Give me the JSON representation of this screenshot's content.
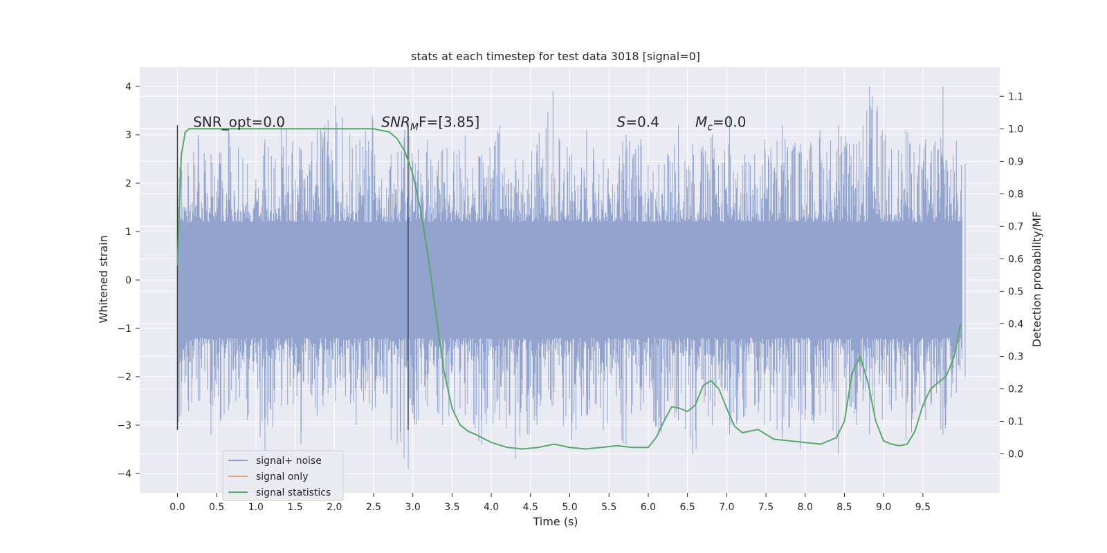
{
  "chart_data": {
    "type": "line",
    "title": "stats at each timestep for test data 3018 [signal=0]",
    "xlabel": "Time (s)",
    "ylabel": "Whitened strain",
    "y2label": "Detection probability/MF",
    "xlim": [
      -0.48,
      10.48
    ],
    "ylim": [
      -4.4,
      4.4
    ],
    "y2lim": [
      -0.12,
      1.19
    ],
    "x_ticks": [
      0.0,
      0.5,
      1.0,
      1.5,
      2.0,
      2.5,
      3.0,
      3.5,
      4.0,
      4.5,
      5.0,
      5.5,
      6.0,
      6.5,
      7.0,
      7.5,
      8.0,
      8.5,
      9.0,
      9.5
    ],
    "x_tick_labels": [
      "0.0",
      "0.5",
      "1.0",
      "1.5",
      "2.0",
      "2.5",
      "3.0",
      "3.5",
      "4.0",
      "4.5",
      "5.0",
      "5.5",
      "6.0",
      "6.5",
      "7.0",
      "7.5",
      "8.0",
      "8.5",
      "9.0",
      "9.5"
    ],
    "y_ticks": [
      -4,
      -3,
      -2,
      -1,
      0,
      1,
      2,
      3,
      4
    ],
    "y_tick_labels": [
      "−4",
      "−3",
      "−2",
      "−1",
      "0",
      "1",
      "2",
      "3",
      "4"
    ],
    "y2_ticks": [
      0.0,
      0.1,
      0.2,
      0.3,
      0.4,
      0.5,
      0.6,
      0.7,
      0.8,
      0.9,
      1.0,
      1.1
    ],
    "y2_tick_labels": [
      "0.0",
      "0.1",
      "0.2",
      "0.3",
      "0.4",
      "0.5",
      "0.6",
      "0.7",
      "0.8",
      "0.9",
      "1.0",
      "1.1"
    ],
    "grid": true,
    "legend_position": "lower-left",
    "annotations": [
      {
        "text_main": "SNR_opt=0.0",
        "x": 0.2
      },
      {
        "text_italic": "SNR",
        "text_sub": "M",
        "text_rest": "F=[3.85]",
        "x": 2.6
      },
      {
        "text_italic": "S",
        "text_rest": "=0.4",
        "x": 5.6
      },
      {
        "text_italic": "M",
        "text_sub": "c",
        "text_rest": "=0.0",
        "x": 6.6
      }
    ],
    "vlines": [
      0.0,
      2.94
    ],
    "series": [
      {
        "name": "signal+ noise",
        "color": "#8da0cb",
        "x_range": [
          0.0,
          10.0
        ],
        "envelope_upper": [
          2.5,
          3.0,
          2.6,
          3.1,
          2.4,
          2.9,
          3.2,
          2.7,
          3.1,
          3.6,
          2.8,
          3.4,
          2.6,
          3.3,
          2.9,
          2.7,
          3.0,
          2.6,
          3.2,
          2.5,
          2.8,
          3.9,
          2.6,
          3.1,
          2.5,
          3.0,
          2.9,
          2.4,
          3.2,
          2.8,
          3.0,
          3.4,
          2.6,
          2.9,
          3.2,
          2.8,
          3.1,
          3.2,
          2.8,
          4.0,
          2.7,
          3.1,
          2.9,
          4.0,
          2.4
        ],
        "envelope_lower": [
          -3.1,
          -2.5,
          -3.2,
          -2.7,
          -2.9,
          -3.6,
          -2.6,
          -3.4,
          -2.8,
          -2.5,
          -3.0,
          -2.7,
          -3.3,
          -3.9,
          -2.6,
          -3.0,
          -2.8,
          -3.4,
          -2.9,
          -3.7,
          -3.0,
          -2.6,
          -3.3,
          -2.8,
          -3.1,
          -3.4,
          -2.7,
          -3.2,
          -2.9,
          -3.6,
          -3.0,
          -3.2,
          -2.8,
          -3.0,
          -3.3,
          -3.5,
          -2.8,
          -3.6,
          -3.0,
          -3.2,
          -2.7,
          -3.3,
          -2.9,
          -3.2,
          -2.0
        ]
      },
      {
        "name": "signal only",
        "color": "#e8a07e",
        "x": [],
        "y": []
      },
      {
        "name": "signal statistics",
        "color": "#55a868",
        "axis": "right",
        "x": [
          0.0,
          0.05,
          0.1,
          0.15,
          0.2,
          0.3,
          0.5,
          1.0,
          1.5,
          2.0,
          2.5,
          2.7,
          2.8,
          2.9,
          3.0,
          3.1,
          3.2,
          3.3,
          3.4,
          3.5,
          3.6,
          3.7,
          3.8,
          4.0,
          4.2,
          4.4,
          4.6,
          4.8,
          5.0,
          5.2,
          5.4,
          5.6,
          5.8,
          6.0,
          6.1,
          6.2,
          6.3,
          6.4,
          6.5,
          6.6,
          6.7,
          6.8,
          6.9,
          7.0,
          7.1,
          7.2,
          7.4,
          7.6,
          7.8,
          8.0,
          8.2,
          8.4,
          8.5,
          8.6,
          8.7,
          8.8,
          8.9,
          9.0,
          9.1,
          9.2,
          9.3,
          9.4,
          9.5,
          9.6,
          9.7,
          9.8,
          9.9,
          9.98
        ],
        "y": [
          0.58,
          0.92,
          0.99,
          1.0,
          1.0,
          1.0,
          1.0,
          1.0,
          1.0,
          1.0,
          1.0,
          0.99,
          0.97,
          0.93,
          0.86,
          0.75,
          0.6,
          0.42,
          0.25,
          0.14,
          0.09,
          0.07,
          0.06,
          0.035,
          0.02,
          0.015,
          0.02,
          0.03,
          0.02,
          0.015,
          0.02,
          0.025,
          0.02,
          0.02,
          0.05,
          0.1,
          0.145,
          0.14,
          0.13,
          0.15,
          0.21,
          0.225,
          0.2,
          0.14,
          0.085,
          0.065,
          0.075,
          0.045,
          0.04,
          0.035,
          0.03,
          0.05,
          0.1,
          0.25,
          0.3,
          0.22,
          0.1,
          0.04,
          0.03,
          0.025,
          0.03,
          0.07,
          0.15,
          0.2,
          0.22,
          0.24,
          0.3,
          0.4
        ]
      }
    ]
  }
}
